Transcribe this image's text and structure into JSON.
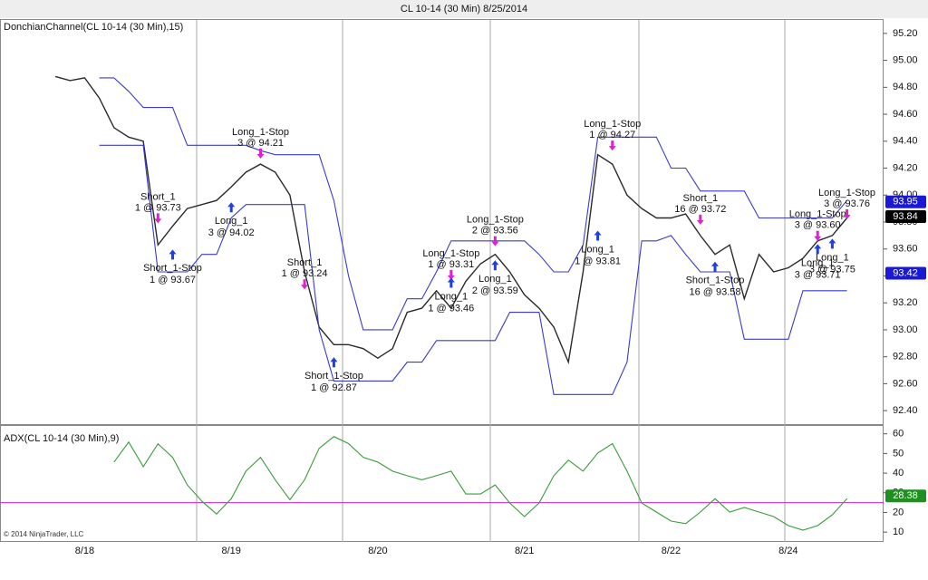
{
  "chart_data": [
    {
      "type": "line",
      "title": "CL 10-14 (30 Min)  8/25/2014",
      "label": "DonchianChannel(CL 10-14 (30 Min),15)",
      "ylim": [
        92.3,
        95.3
      ],
      "yticks": [
        {
          "value": 92.4,
          "label": "92.40"
        },
        {
          "value": 92.6,
          "label": "92.60"
        },
        {
          "value": 92.8,
          "label": "92.80"
        },
        {
          "value": 93.0,
          "label": "93.00"
        },
        {
          "value": 93.2,
          "label": "93.20"
        },
        {
          "value": 93.4,
          "label": "93.40"
        },
        {
          "value": 93.6,
          "label": "93.60"
        },
        {
          "value": 93.8,
          "label": "93.80"
        },
        {
          "value": 94.0,
          "label": "94.00"
        },
        {
          "value": 94.2,
          "label": "94.20"
        },
        {
          "value": 94.4,
          "label": "94.40"
        },
        {
          "value": 94.6,
          "label": "94.60"
        },
        {
          "value": 94.8,
          "label": "94.80"
        },
        {
          "value": 95.0,
          "label": "95.00"
        },
        {
          "value": 95.2,
          "label": "95.20"
        }
      ],
      "series": [
        {
          "name": "Price",
          "color": "#2a2a2a",
          "values": [
            94.88,
            94.85,
            94.87,
            94.72,
            94.5,
            94.43,
            94.4,
            93.63,
            93.77,
            93.9,
            93.93,
            93.96,
            94.06,
            94.17,
            94.23,
            94.17,
            94.0,
            93.43,
            93.02,
            92.89,
            92.89,
            92.86,
            92.79,
            92.86,
            93.13,
            93.16,
            93.29,
            93.16,
            93.36,
            93.49,
            93.56,
            93.43,
            93.26,
            93.16,
            93.02,
            92.76,
            93.43,
            94.3,
            94.23,
            94.0,
            93.9,
            93.83,
            93.83,
            93.86,
            93.7,
            93.56,
            93.63,
            93.23,
            93.56,
            93.43,
            93.46,
            93.53,
            93.66,
            93.7,
            93.83,
            null,
            null
          ]
        },
        {
          "name": "Upper",
          "color": "#3a3ad0",
          "values": [
            null,
            null,
            null,
            94.87,
            94.87,
            94.77,
            94.65,
            94.65,
            94.65,
            94.37,
            94.37,
            94.37,
            94.37,
            94.37,
            94.33,
            94.3,
            94.3,
            94.3,
            94.3,
            93.96,
            93.4,
            93.0,
            93.0,
            93.0,
            93.23,
            93.23,
            93.43,
            93.66,
            93.66,
            93.66,
            93.66,
            93.66,
            93.66,
            93.56,
            93.43,
            93.43,
            93.63,
            94.43,
            94.43,
            94.43,
            94.43,
            94.43,
            94.2,
            94.2,
            94.03,
            94.03,
            94.03,
            94.03,
            93.83,
            93.83,
            93.83,
            93.83,
            93.83,
            93.83,
            93.96,
            null,
            null
          ]
        },
        {
          "name": "Lower",
          "color": "#3a3ad0",
          "values": [
            null,
            null,
            null,
            94.37,
            94.37,
            94.37,
            94.37,
            93.43,
            93.43,
            93.43,
            93.56,
            93.56,
            93.83,
            93.93,
            93.93,
            93.93,
            93.93,
            93.93,
            93.0,
            92.62,
            92.62,
            92.62,
            92.62,
            92.62,
            92.76,
            92.76,
            92.92,
            92.92,
            92.92,
            92.92,
            92.92,
            93.13,
            93.13,
            93.13,
            92.52,
            92.52,
            92.52,
            92.52,
            92.52,
            92.76,
            93.66,
            93.66,
            93.7,
            93.56,
            93.43,
            93.43,
            93.43,
            92.93,
            92.93,
            92.93,
            92.93,
            93.29,
            93.29,
            93.29,
            93.29,
            null,
            null
          ]
        }
      ],
      "markers": [
        {
          "value": 93.95,
          "label": "93.95",
          "color": "#1a1ad6"
        },
        {
          "value": 93.84,
          "label": "93.84",
          "color": "#000000"
        },
        {
          "value": 93.42,
          "label": "93.42",
          "color": "#1a1ad6"
        }
      ],
      "annotations": [
        {
          "label": "Short_1",
          "detail": "1 @ 93.73",
          "at": 7,
          "price": 93.73,
          "side": "sell"
        },
        {
          "label": "Short_1-Stop",
          "detail": "1 @ 93.67",
          "at": 8,
          "price": 93.67,
          "side": "buy"
        },
        {
          "label": "Long_1",
          "detail": "3 @ 94.02",
          "at": 12,
          "price": 94.02,
          "side": "buy"
        },
        {
          "label": "Long_1-Stop",
          "detail": "3 @ 94.21",
          "at": 14,
          "price": 94.21,
          "side": "sell"
        },
        {
          "label": "Short_1",
          "detail": "1 @ 93.24",
          "at": 17,
          "price": 93.24,
          "side": "sell"
        },
        {
          "label": "Short_1-Stop",
          "detail": "1 @ 92.87",
          "at": 19,
          "price": 92.87,
          "side": "buy"
        },
        {
          "label": "Long_1-Stop",
          "detail": "1 @ 93.31",
          "at": 27,
          "price": 93.31,
          "side": "sell"
        },
        {
          "label": "Long_1",
          "detail": "1 @ 93.46",
          "at": 27,
          "price": 93.46,
          "side": "buy"
        },
        {
          "label": "Long_1-Stop",
          "detail": "2 @ 93.56",
          "at": 30,
          "price": 93.56,
          "side": "sell"
        },
        {
          "label": "Long_1",
          "detail": "2 @ 93.59",
          "at": 30,
          "price": 93.59,
          "side": "buy"
        },
        {
          "label": "Long_1-Stop",
          "detail": "1 @ 94.27",
          "at": 38,
          "price": 94.27,
          "side": "sell"
        },
        {
          "label": "Long_1",
          "detail": "1 @ 93.81",
          "at": 37,
          "price": 93.81,
          "side": "buy"
        },
        {
          "label": "Short_1",
          "detail": "16 @ 93.72",
          "at": 44,
          "price": 93.72,
          "side": "sell"
        },
        {
          "label": "Short_1-Stop",
          "detail": "16 @ 93.58",
          "at": 45,
          "price": 93.58,
          "side": "buy"
        },
        {
          "label": "Long_1-Stop",
          "detail": "3 @ 93.60",
          "at": 52,
          "price": 93.6,
          "side": "sell"
        },
        {
          "label": "Long_1-Stop",
          "detail": "3 @ 93.76",
          "at": 54,
          "price": 93.76,
          "side": "sell"
        },
        {
          "label": "Long_1",
          "detail": "3 @ 93.71",
          "at": 52,
          "price": 93.71,
          "side": "buy"
        },
        {
          "label": "Long_1",
          "detail": "3 @ 93.75",
          "at": 53,
          "price": 93.75,
          "side": "buy"
        }
      ]
    },
    {
      "type": "line",
      "label": "ADX(CL 10-14 (30 Min),9)",
      "footnote": "© 2014 NinjaTrader, LLC",
      "categories": [
        null,
        null,
        "8/18",
        null,
        null,
        null,
        null,
        null,
        null,
        null,
        null,
        null,
        "8/19",
        null,
        null,
        null,
        null,
        null,
        null,
        null,
        null,
        null,
        "8/20",
        null,
        null,
        null,
        null,
        null,
        null,
        null,
        null,
        null,
        "8/21",
        null,
        null,
        null,
        null,
        null,
        null,
        null,
        null,
        null,
        "8/22",
        null,
        null,
        null,
        null,
        null,
        null,
        null,
        "8/24",
        null,
        null,
        null,
        null,
        null,
        null
      ],
      "ylim": [
        5,
        64
      ],
      "yticks": [
        10,
        20,
        30,
        40,
        50,
        60
      ],
      "level": 25,
      "level_color": "#cc22cc",
      "series": [
        {
          "name": "ADX",
          "color": "#3a9a3a",
          "values": [
            null,
            null,
            null,
            null,
            45.6,
            55.8,
            43.3,
            54.9,
            48,
            34,
            25.7,
            19.2,
            27,
            41,
            48,
            36.6,
            26.5,
            36.6,
            52.6,
            58.6,
            55,
            48,
            45.6,
            41,
            38.7,
            36.6,
            38.7,
            41,
            29.4,
            29.4,
            34,
            24.8,
            17.9,
            24.8,
            38.7,
            46.6,
            41,
            50.2,
            55,
            41,
            24.8,
            20.2,
            15.6,
            14.3,
            20.2,
            27,
            20.2,
            22.5,
            20.2,
            17.9,
            13.3,
            11,
            13.3,
            18.8,
            27,
            null,
            null
          ]
        }
      ],
      "markers": [
        {
          "value": 28.38,
          "label": "28.38",
          "color": "#1f8f1f"
        }
      ]
    }
  ]
}
